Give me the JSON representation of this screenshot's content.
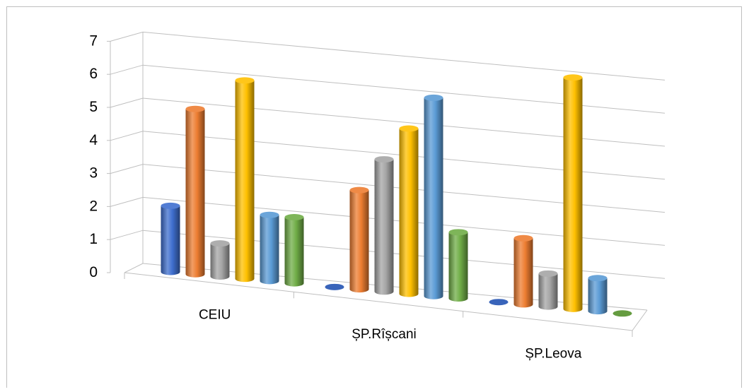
{
  "chart_data": {
    "type": "bar",
    "style": "3d-cylinder",
    "title": "",
    "xlabel": "",
    "ylabel": "",
    "ylim": [
      0,
      7
    ],
    "yticks": [
      0,
      1,
      2,
      3,
      4,
      5,
      6,
      7
    ],
    "grid": true,
    "legend": "none",
    "categories": [
      "CEIU",
      "ȘP.Rîșcani",
      "ȘP.Leova"
    ],
    "series": [
      {
        "color": "#3f6fcf",
        "values": [
          2,
          0,
          0
        ]
      },
      {
        "color": "#ed7d31",
        "values": [
          5,
          3,
          2
        ]
      },
      {
        "color": "#a5a5a5",
        "values": [
          1,
          4,
          1
        ]
      },
      {
        "color": "#ffc000",
        "values": [
          6,
          5,
          7
        ]
      },
      {
        "color": "#5b9bd5",
        "values": [
          2,
          6,
          1
        ]
      },
      {
        "color": "#70ad47",
        "values": [
          2,
          2,
          0
        ]
      }
    ]
  }
}
